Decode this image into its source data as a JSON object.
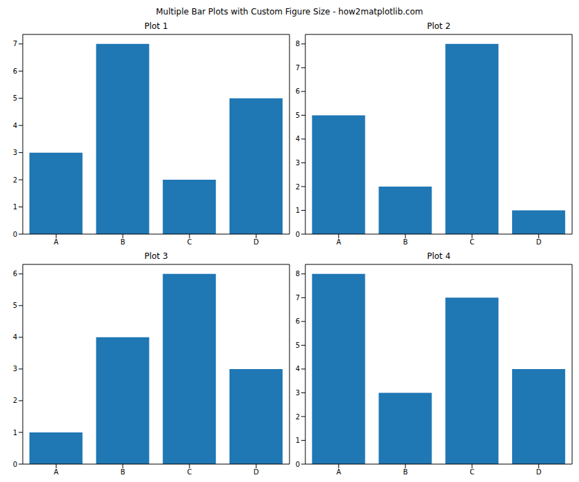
{
  "title": "Multiple Bar Plots with Custom Figure Size - how2matplotlib.com",
  "chart_data": [
    {
      "type": "bar",
      "title": "Plot 1",
      "categories": [
        "A",
        "B",
        "C",
        "D"
      ],
      "values": [
        3,
        7,
        2,
        5
      ],
      "color": "#1f77b4",
      "ylim": [
        0,
        7.35
      ],
      "yticks": [
        0,
        1,
        2,
        3,
        4,
        5,
        6,
        7
      ]
    },
    {
      "type": "bar",
      "title": "Plot 2",
      "categories": [
        "A",
        "B",
        "C",
        "D"
      ],
      "values": [
        5,
        2,
        8,
        1
      ],
      "color": "#1f77b4",
      "ylim": [
        0,
        8.4
      ],
      "yticks": [
        0,
        1,
        2,
        3,
        4,
        5,
        6,
        7,
        8
      ]
    },
    {
      "type": "bar",
      "title": "Plot 3",
      "categories": [
        "A",
        "B",
        "C",
        "D"
      ],
      "values": [
        1,
        4,
        6,
        3
      ],
      "color": "#1f77b4",
      "ylim": [
        0,
        6.3
      ],
      "yticks": [
        0,
        1,
        2,
        3,
        4,
        5,
        6
      ]
    },
    {
      "type": "bar",
      "title": "Plot 4",
      "categories": [
        "A",
        "B",
        "C",
        "D"
      ],
      "values": [
        8,
        3,
        7,
        4
      ],
      "color": "#1f77b4",
      "ylim": [
        0,
        8.4
      ],
      "yticks": [
        0,
        1,
        2,
        3,
        4,
        5,
        6,
        7,
        8
      ]
    }
  ]
}
